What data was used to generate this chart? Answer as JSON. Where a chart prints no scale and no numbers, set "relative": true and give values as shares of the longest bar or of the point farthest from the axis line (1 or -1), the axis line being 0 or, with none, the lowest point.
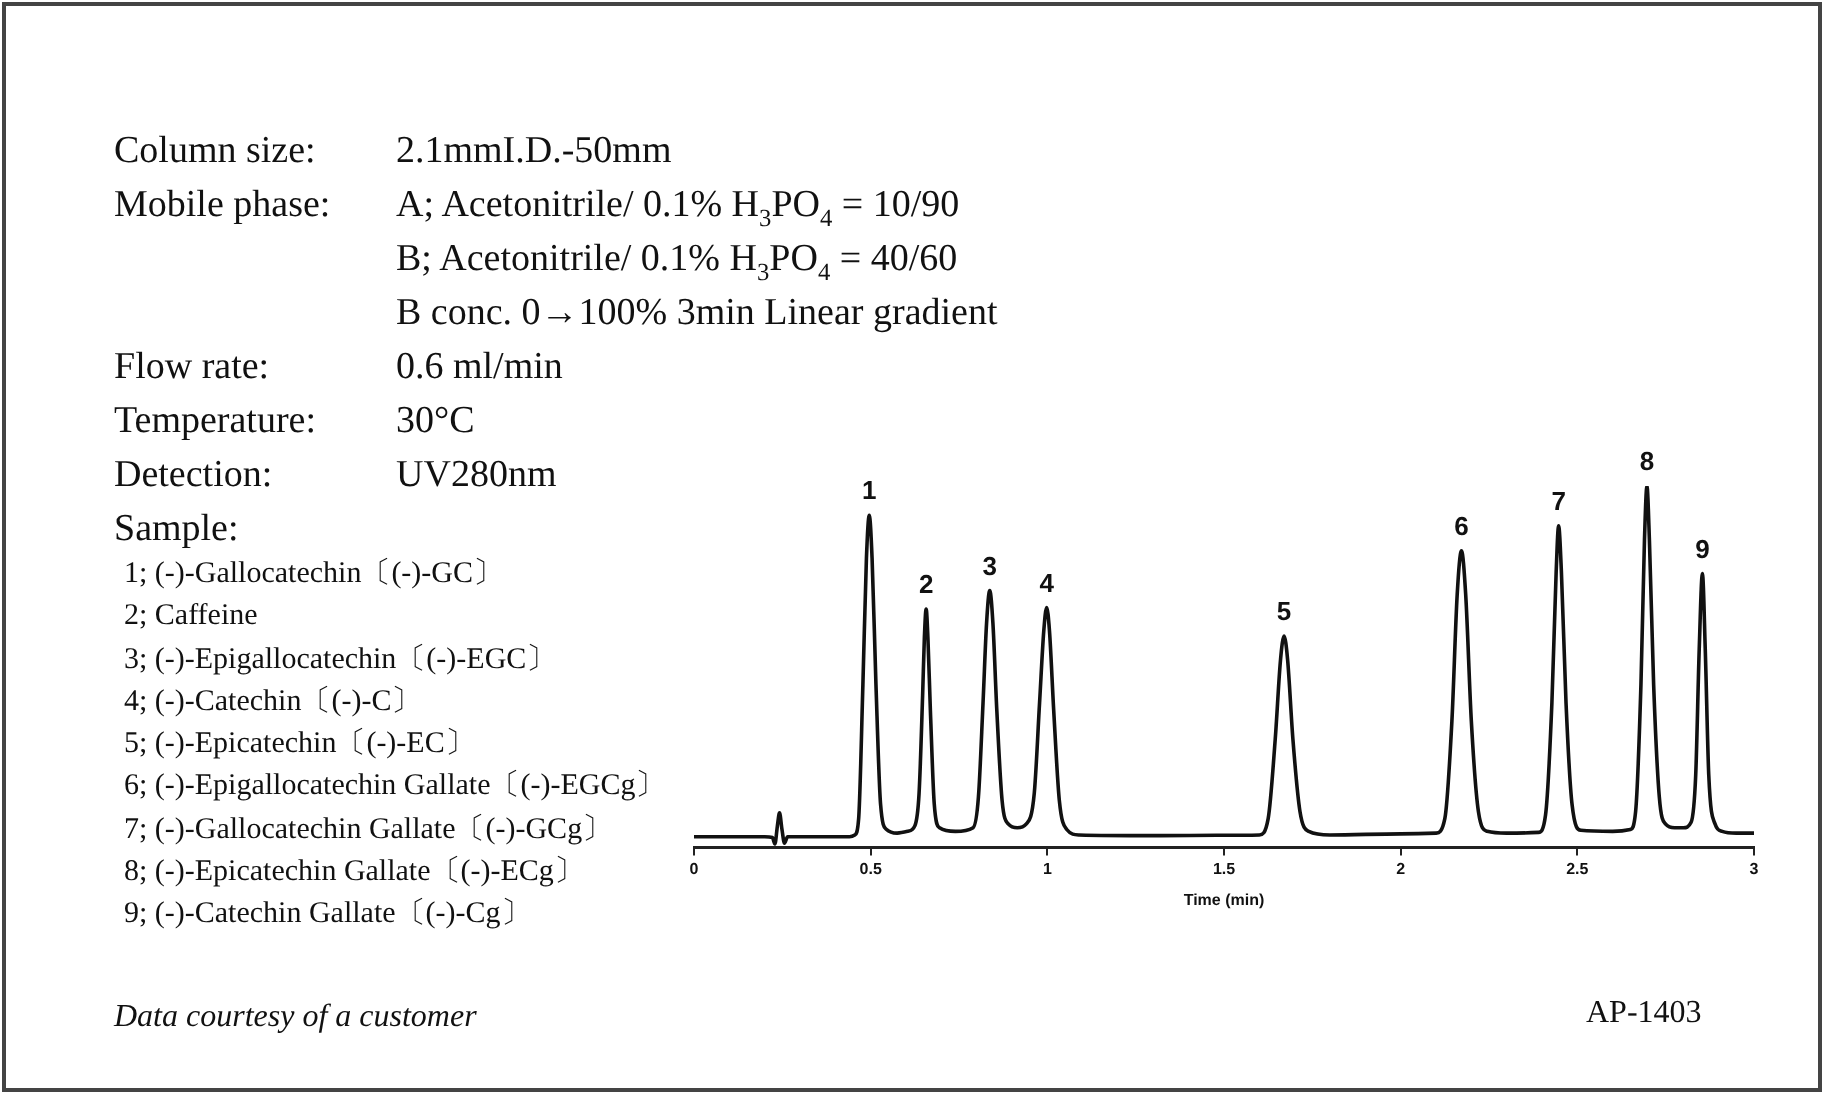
{
  "chart_data": {
    "type": "line",
    "xlabel": "Time (min)",
    "relative": true,
    "marker": "none",
    "color": "#111111",
    "xlim": [
      0,
      3
    ],
    "xticks": [
      0,
      0.5,
      1,
      1.5,
      2,
      2.5,
      3
    ],
    "x": [
      0,
      0.1,
      0.2,
      0.222,
      0.229,
      0.236,
      0.242,
      0.249,
      0.256,
      0.265,
      0.35,
      0.44,
      0.455,
      0.466,
      0.478,
      0.488,
      0.496,
      0.504,
      0.515,
      0.528,
      0.545,
      0.575,
      0.605,
      0.625,
      0.637,
      0.647,
      0.652,
      0.657,
      0.662,
      0.669,
      0.68,
      0.695,
      0.74,
      0.79,
      0.805,
      0.818,
      0.828,
      0.837,
      0.846,
      0.857,
      0.872,
      0.89,
      0.915,
      0.94,
      0.963,
      0.978,
      0.99,
      0.998,
      1.006,
      1.018,
      1.034,
      1.055,
      1.09,
      1.3,
      1.5,
      1.6,
      1.625,
      1.645,
      1.66,
      1.67,
      1.68,
      1.695,
      1.715,
      1.74,
      1.8,
      2.0,
      2.1,
      2.125,
      2.145,
      2.16,
      2.172,
      2.184,
      2.2,
      2.22,
      2.245,
      2.3,
      2.39,
      2.41,
      2.428,
      2.44,
      2.447,
      2.455,
      2.468,
      2.485,
      2.51,
      2.6,
      2.65,
      2.665,
      2.68,
      2.69,
      2.697,
      2.704,
      2.716,
      2.732,
      2.75,
      2.775,
      2.8,
      2.822,
      2.835,
      2.845,
      2.854,
      2.862,
      2.872,
      2.89,
      2.91,
      2.95,
      3
    ],
    "values": [
      0.03,
      0.03,
      0.03,
      0.028,
      0.01,
      0.06,
      0.096,
      0.05,
      0.012,
      0.03,
      0.03,
      0.03,
      0.035,
      0.08,
      0.45,
      0.8,
      0.919,
      0.8,
      0.45,
      0.12,
      0.05,
      0.04,
      0.045,
      0.06,
      0.15,
      0.42,
      0.58,
      0.66,
      0.58,
      0.38,
      0.12,
      0.055,
      0.045,
      0.055,
      0.14,
      0.4,
      0.62,
      0.711,
      0.62,
      0.38,
      0.13,
      0.065,
      0.055,
      0.065,
      0.15,
      0.4,
      0.6,
      0.664,
      0.6,
      0.38,
      0.13,
      0.05,
      0.035,
      0.033,
      0.034,
      0.035,
      0.08,
      0.3,
      0.52,
      0.585,
      0.52,
      0.3,
      0.1,
      0.045,
      0.035,
      0.038,
      0.04,
      0.08,
      0.35,
      0.7,
      0.821,
      0.7,
      0.35,
      0.1,
      0.045,
      0.04,
      0.042,
      0.09,
      0.4,
      0.76,
      0.89,
      0.76,
      0.4,
      0.12,
      0.048,
      0.045,
      0.05,
      0.1,
      0.45,
      0.85,
      1,
      0.85,
      0.45,
      0.14,
      0.065,
      0.055,
      0.055,
      0.07,
      0.2,
      0.55,
      0.758,
      0.55,
      0.2,
      0.065,
      0.045,
      0.04,
      0.04
    ],
    "annotations": [
      "Column size:\t2.1mmI.D.-50mm",
      "Mobile phase:\tA; Acetonitrile/ 0.1% H$_{3}$PO$_{4}$ = 10/90",
      "\tB; Acetonitrile/ 0.1% H$_{3}$PO$_{4}$ = 40/60",
      "\tB conc. 0→100% 3min Linear gradient",
      "Flow rate:\t0.6 ml/min",
      "Temperature:\t30°C",
      "Detection:\tUV280nm",
      "Sample:",
      "1; (-)-Gallocatechin〔(-)-GC〕",
      "2; Caffeine",
      "3; (-)-Epigallocatechin〔(-)-EGC〕",
      "4; (-)-Catechin〔(-)-C〕",
      "5; (-)-Epicatechin〔(-)-EC〕",
      "6; (-)-Epigallocatechin Gallate〔(-)-EGCg〕",
      "7; (-)-Gallocatechin Gallate〔(-)-GCg〕",
      "8; (-)-Epicatechin Gallate〔(-)-ECg〕",
      "9; (-)-Catechin Gallate〔(-)-Cg〕",
      "Data courtesy of a customer",
      "AP-1403",
      {
        "text": "1",
        "x": 0.496,
        "y": 0.919
      },
      {
        "text": "2",
        "x": 0.657,
        "y": 0.66
      },
      {
        "text": "3",
        "x": 0.837,
        "y": 0.711
      },
      {
        "text": "4",
        "x": 0.998,
        "y": 0.664
      },
      {
        "text": "5",
        "x": 1.67,
        "y": 0.585
      },
      {
        "text": "6",
        "x": 2.172,
        "y": 0.821
      },
      {
        "text": "7",
        "x": 2.447,
        "y": 0.89
      },
      {
        "text": "8",
        "x": 2.697,
        "y": 1
      },
      {
        "text": "9",
        "x": 2.854,
        "y": 0.758
      }
    ]
  }
}
